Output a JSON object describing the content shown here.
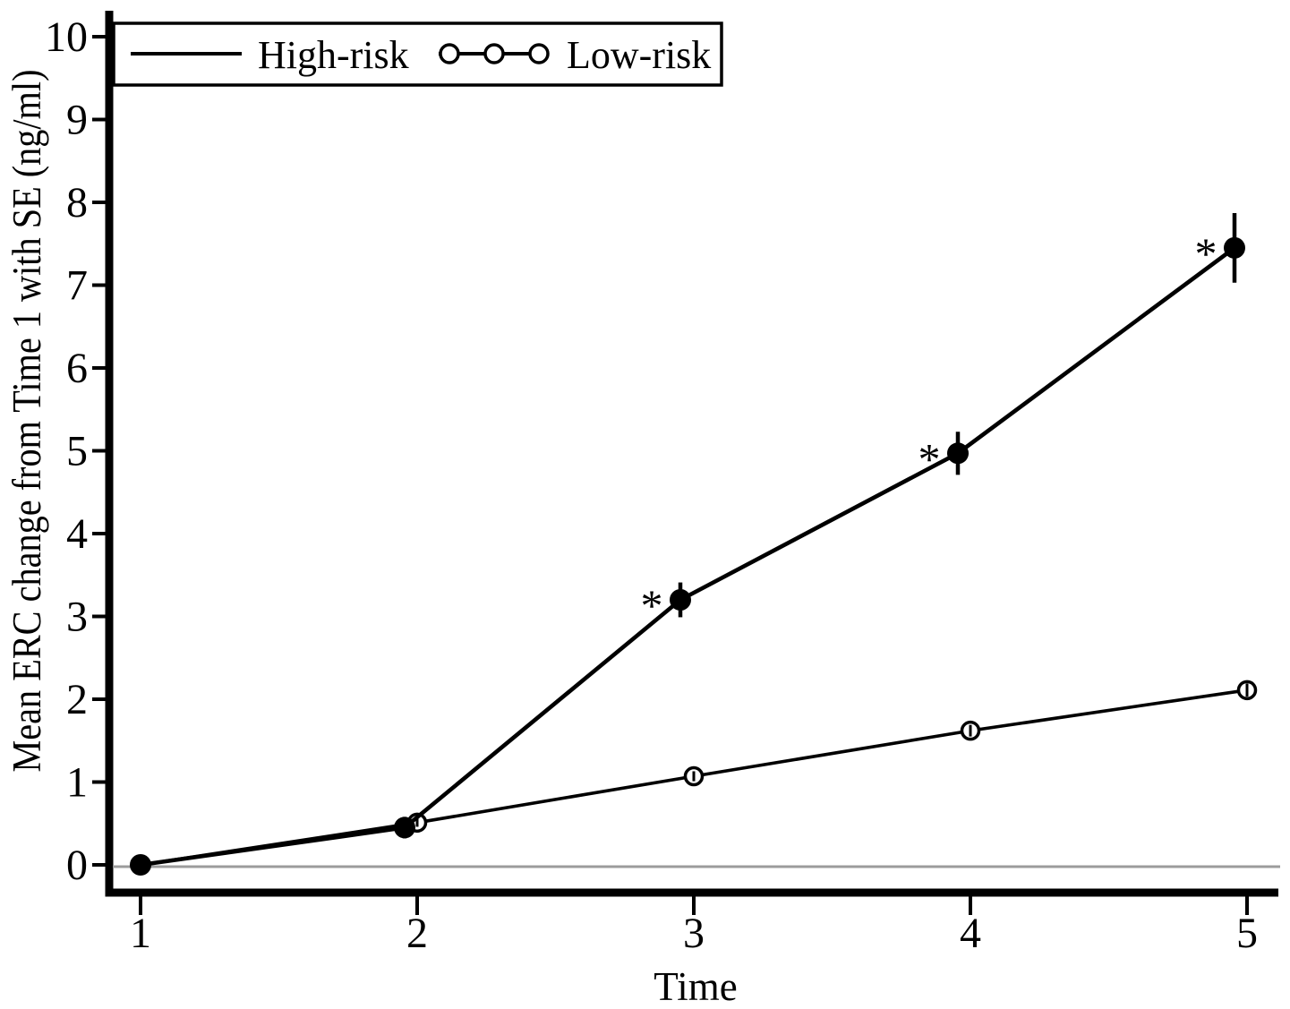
{
  "page": {
    "background": "#ffffff"
  },
  "chart_data": {
    "type": "line",
    "title": "",
    "xlabel": "Time",
    "ylabel": "Mean ERC change from Time 1 with SE (ng/ml)",
    "x": [
      1,
      2,
      3,
      4,
      5
    ],
    "xticks": [
      "1",
      "2",
      "3",
      "4",
      "5"
    ],
    "ytick_values": [
      0,
      1,
      2,
      3,
      4,
      5,
      6,
      7,
      8,
      9,
      10
    ],
    "yticks": [
      "0",
      "1",
      "2",
      "3",
      "4",
      "5",
      "6",
      "7",
      "8",
      "9",
      "10"
    ],
    "xlim": [
      0.89,
      5.12
    ],
    "ylim": [
      -0.34,
      10.32
    ],
    "grid": false,
    "legend_position": "top-left",
    "zero_reference_line": 0,
    "series": [
      {
        "name": "Low-risk",
        "marker": "open-circle",
        "color": "#000000",
        "values": [
          0.0,
          0.51,
          1.07,
          1.62,
          2.11
        ],
        "se": [
          0.03,
          0.05,
          0.06,
          0.07,
          0.08
        ]
      },
      {
        "name": "High-risk",
        "marker": "filled-circle",
        "color": "#000000",
        "values": [
          0.0,
          0.45,
          3.2,
          4.97,
          7.45
        ],
        "se": [
          0.03,
          0.13,
          0.21,
          0.26,
          0.42
        ]
      }
    ],
    "annotations": [
      {
        "text": "*",
        "series": "High-risk",
        "time": 3
      },
      {
        "text": "*",
        "series": "High-risk",
        "time": 4
      },
      {
        "text": "*",
        "series": "High-risk",
        "time": 5
      }
    ]
  },
  "legend": {
    "entries": [
      {
        "label": "High-risk",
        "sample": "plain-line"
      },
      {
        "label": "Low-risk",
        "sample": "line-with-open-circles"
      }
    ]
  },
  "colors": {
    "series_line": "#000000",
    "zero_line": "#9c9c9c",
    "text": "#000000",
    "background": "#ffffff"
  }
}
